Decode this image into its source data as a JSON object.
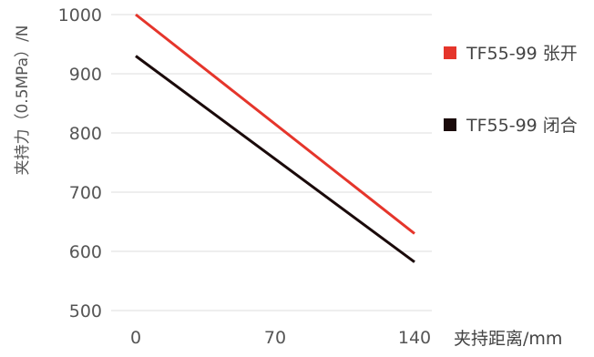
{
  "chart_data": {
    "type": "line",
    "title": "",
    "xlabel": "夹持距离/mm",
    "ylabel": "夹持力（0.5MPa）/N",
    "x": [
      0,
      140
    ],
    "x_ticks": [
      "0",
      "70",
      "140"
    ],
    "x_tick_values": [
      0,
      70,
      140
    ],
    "xlim": [
      0,
      140
    ],
    "y_ticks": [
      "500",
      "600",
      "700",
      "800",
      "900",
      "1000"
    ],
    "y_tick_values": [
      500,
      600,
      700,
      800,
      900,
      1000
    ],
    "ylim": [
      500,
      1000
    ],
    "grid": "horizontal",
    "legend_placement": "right",
    "series": [
      {
        "name": "TF55-99 张开",
        "color": "#e5352b",
        "x": [
          0,
          140
        ],
        "values": [
          1000,
          630
        ]
      },
      {
        "name": "TF55-99 闭合",
        "color": "#1a0a0a",
        "x": [
          0,
          140
        ],
        "values": [
          930,
          582
        ]
      }
    ]
  }
}
